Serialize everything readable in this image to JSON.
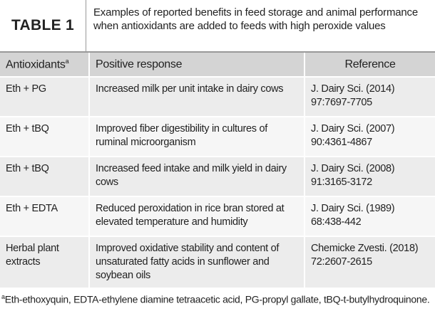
{
  "header": {
    "label": "TABLE 1",
    "caption": "Examples of reported benefits in feed storage and animal performance when antioxidants are added to feeds with high peroxide values"
  },
  "table": {
    "columns": [
      "Antioxidants",
      "Positive response",
      "Reference"
    ],
    "column_note": "a",
    "rows": [
      [
        "Eth + PG",
        "Increased milk per unit intake in dairy cows",
        "J. Dairy Sci. (2014) 97:7697-7705"
      ],
      [
        "Eth + tBQ",
        "Improved fiber digestibility in cultures of ruminal microorganism",
        "J. Dairy Sci. (2007) 90:4361-4867"
      ],
      [
        "Eth + tBQ",
        "Increased feed intake and milk yield in dairy cows",
        "J. Dairy Sci. (2008) 91:3165-3172"
      ],
      [
        "Eth + EDTA",
        "Reduced peroxidation in rice bran stored at elevated temperature and humidity",
        "J. Dairy Sci. (1989) 68:438-442"
      ],
      [
        "Herbal plant extracts",
        "Improved oxidative stability and content of unsaturated fatty acids in sunflower and soybean oils",
        "Chemicke Zvesti. (2018) 72:2607-2615"
      ]
    ]
  },
  "footnote": {
    "marker": "a",
    "text": "Eth-ethoxyquin, EDTA-ethylene diamine tetraacetic acid, PG-propyl gallate, tBQ-t-butylhydroquinone."
  }
}
